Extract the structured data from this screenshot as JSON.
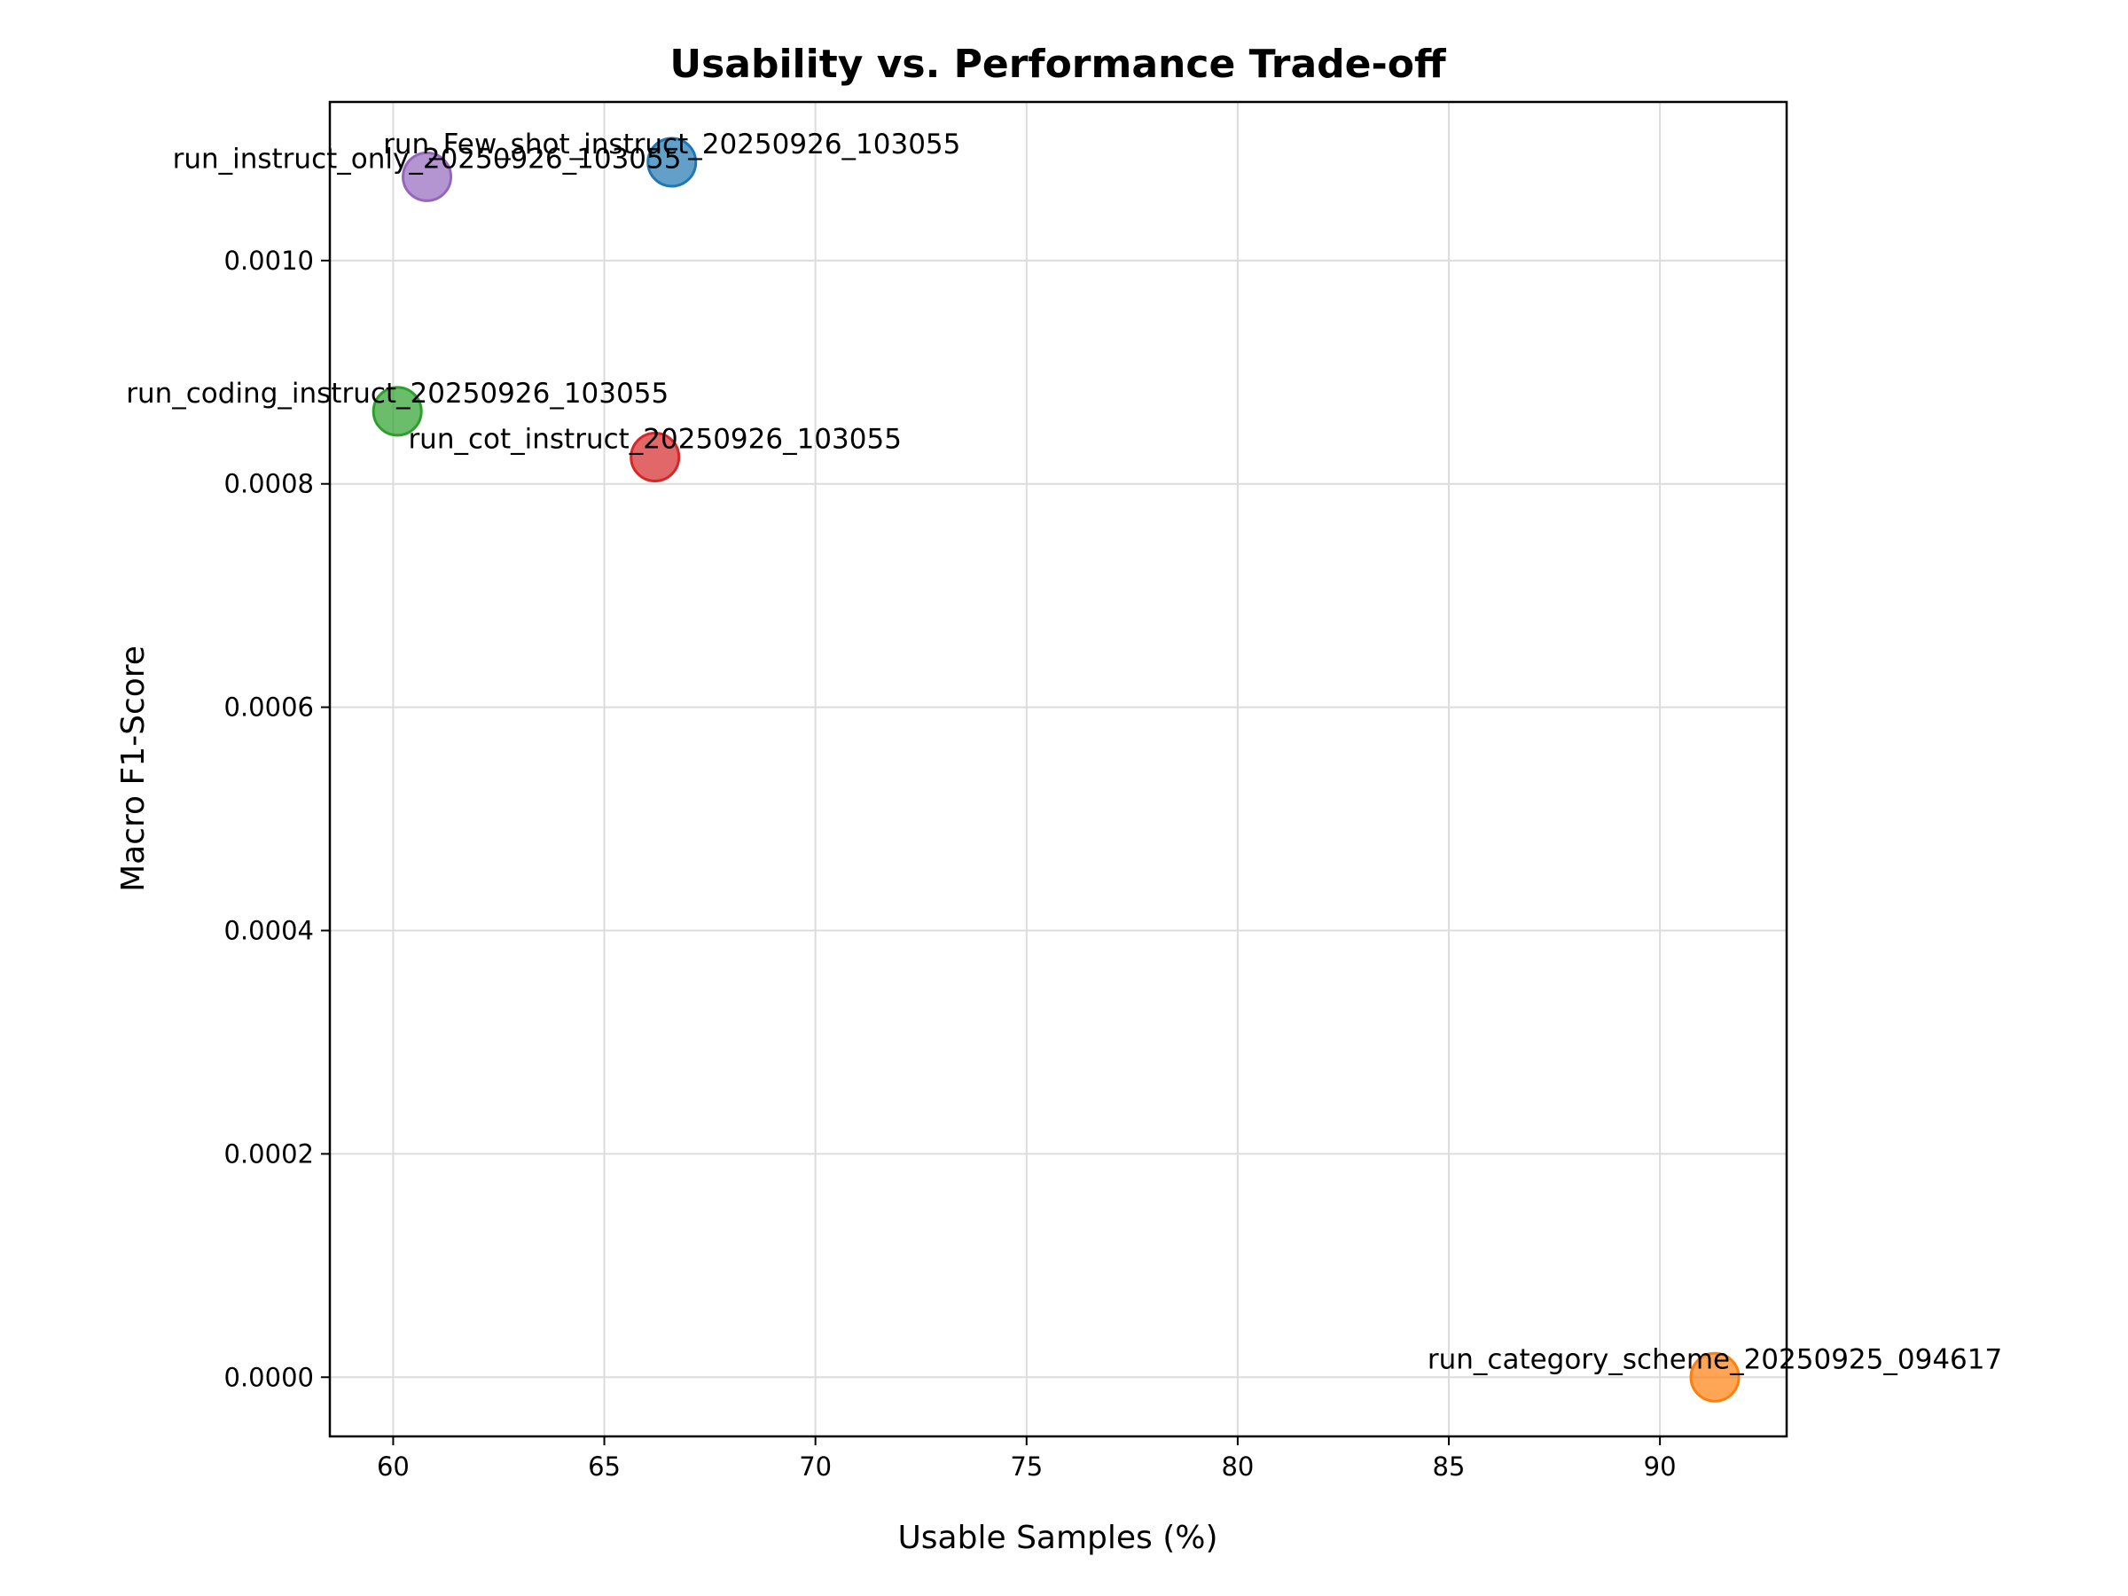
{
  "chart_data": {
    "type": "scatter",
    "title": "Usability vs. Performance Trade-off",
    "xlabel": "Usable Samples (%)",
    "ylabel": "Macro F1-Score",
    "xlim": [
      58.5,
      93.0
    ],
    "ylim": [
      -5.3e-05,
      0.001142
    ],
    "xticks": [
      60,
      65,
      70,
      75,
      80,
      85,
      90
    ],
    "xtick_labels": [
      "60",
      "65",
      "70",
      "75",
      "80",
      "85",
      "90"
    ],
    "yticks": [
      0.0,
      0.0002,
      0.0004,
      0.0006,
      0.0008,
      0.001
    ],
    "ytick_labels": [
      "0.0000",
      "0.0002",
      "0.0004",
      "0.0006",
      "0.0008",
      "0.0010"
    ],
    "grid": true,
    "points": [
      {
        "label": "run_Few_shot_instruct_20250926_103055",
        "x": 66.6,
        "y": 0.001088,
        "color": "#1f77b4"
      },
      {
        "label": "run_instruct_only_20250926_103055",
        "x": 60.8,
        "y": 0.001075,
        "color": "#9467bd"
      },
      {
        "label": "run_coding_instruct_20250926_103055",
        "x": 60.1,
        "y": 0.000865,
        "color": "#2ca02c"
      },
      {
        "label": "run_cot_instruct_20250926_103055",
        "x": 66.2,
        "y": 0.000824,
        "color": "#d62728"
      },
      {
        "label": "run_category_scheme_20250925_094617",
        "x": 91.3,
        "y": 0.0,
        "color": "#ff7f0e"
      }
    ]
  }
}
